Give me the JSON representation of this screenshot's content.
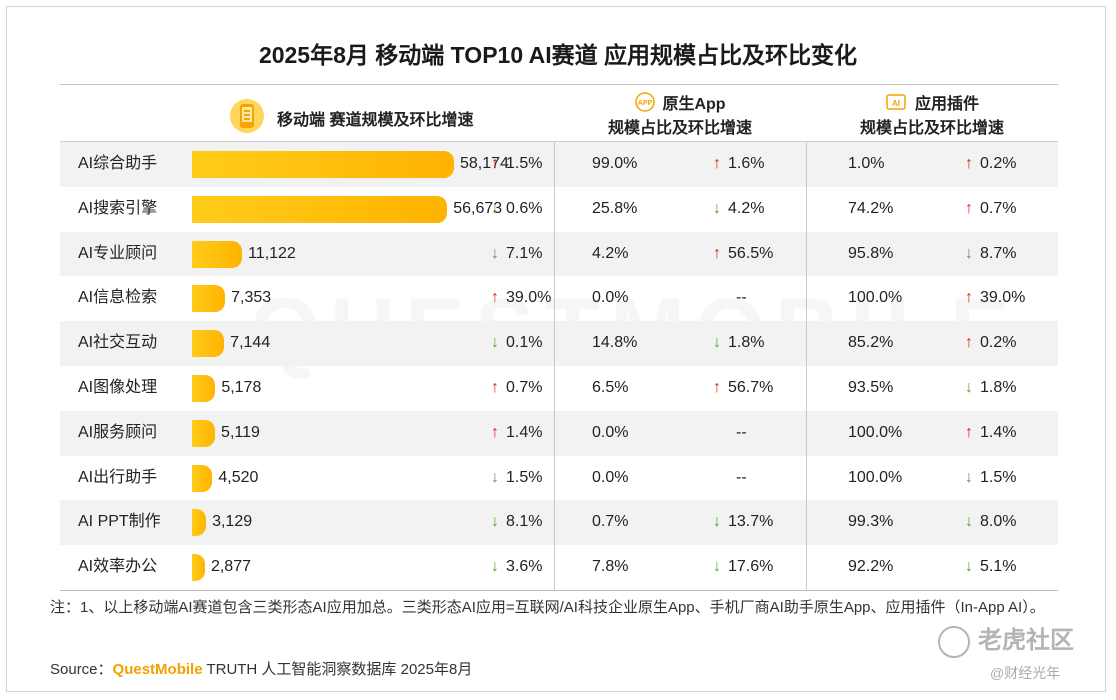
{
  "title": "2025年8月 移动端 TOP10 AI赛道 应用规模占比及环比变化",
  "headers": {
    "col1": "移动端 赛道规模及环比增速",
    "col2_line1": "原生App",
    "col2_line2": "规模占比及环比增速",
    "col3_line1": "应用插件",
    "col3_line2": "规模占比及环比增速",
    "icon2_text": "APP",
    "icon3_text": "AI"
  },
  "colors": {
    "up": "#e0211b",
    "down": "#53a338",
    "bar": "#ffb300"
  },
  "chart_data": {
    "type": "table",
    "title": "2025年8月 移动端 TOP10 AI赛道 应用规模占比及环比变化",
    "bar_max": 58174,
    "columns": [
      "赛道",
      "移动端规模",
      "环比增速",
      "原生App占比",
      "原生App环比",
      "应用插件占比",
      "应用插件环比"
    ],
    "rows": [
      {
        "name": "AI综合助手",
        "value": 58174,
        "value_label": "58,174",
        "mom": "1.5%",
        "mom_dir": "up",
        "app_share": "99.0%",
        "app_mom": "1.6%",
        "app_dir": "up",
        "plugin_share": "1.0%",
        "plugin_mom": "0.2%",
        "plugin_dir": "up"
      },
      {
        "name": "AI搜索引擎",
        "value": 56673,
        "value_label": "56,673",
        "mom": "0.6%",
        "mom_dir": "down",
        "app_share": "25.8%",
        "app_mom": "4.2%",
        "app_dir": "down",
        "plugin_share": "74.2%",
        "plugin_mom": "0.7%",
        "plugin_dir": "up"
      },
      {
        "name": "AI专业顾问",
        "value": 11122,
        "value_label": "11,122",
        "mom": "7.1%",
        "mom_dir": "down",
        "app_share": "4.2%",
        "app_mom": "56.5%",
        "app_dir": "up",
        "plugin_share": "95.8%",
        "plugin_mom": "8.7%",
        "plugin_dir": "down"
      },
      {
        "name": "AI信息检索",
        "value": 7353,
        "value_label": "7,353",
        "mom": "39.0%",
        "mom_dir": "up",
        "app_share": "0.0%",
        "app_mom": "--",
        "app_dir": "none",
        "plugin_share": "100.0%",
        "plugin_mom": "39.0%",
        "plugin_dir": "up"
      },
      {
        "name": "AI社交互动",
        "value": 7144,
        "value_label": "7,144",
        "mom": "0.1%",
        "mom_dir": "down",
        "app_share": "14.8%",
        "app_mom": "1.8%",
        "app_dir": "down",
        "plugin_share": "85.2%",
        "plugin_mom": "0.2%",
        "plugin_dir": "up"
      },
      {
        "name": "AI图像处理",
        "value": 5178,
        "value_label": "5,178",
        "mom": "0.7%",
        "mom_dir": "up",
        "app_share": "6.5%",
        "app_mom": "56.7%",
        "app_dir": "up",
        "plugin_share": "93.5%",
        "plugin_mom": "1.8%",
        "plugin_dir": "down"
      },
      {
        "name": "AI服务顾问",
        "value": 5119,
        "value_label": "5,119",
        "mom": "1.4%",
        "mom_dir": "up",
        "app_share": "0.0%",
        "app_mom": "--",
        "app_dir": "none",
        "plugin_share": "100.0%",
        "plugin_mom": "1.4%",
        "plugin_dir": "up"
      },
      {
        "name": "AI出行助手",
        "value": 4520,
        "value_label": "4,520",
        "mom": "1.5%",
        "mom_dir": "down",
        "app_share": "0.0%",
        "app_mom": "--",
        "app_dir": "none",
        "plugin_share": "100.0%",
        "plugin_mom": "1.5%",
        "plugin_dir": "down"
      },
      {
        "name": "AI PPT制作",
        "value": 3129,
        "value_label": "3,129",
        "mom": "8.1%",
        "mom_dir": "down",
        "app_share": "0.7%",
        "app_mom": "13.7%",
        "app_dir": "down",
        "plugin_share": "99.3%",
        "plugin_mom": "8.0%",
        "plugin_dir": "down"
      },
      {
        "name": "AI效率办公",
        "value": 2877,
        "value_label": "2,877",
        "mom": "3.6%",
        "mom_dir": "down",
        "app_share": "7.8%",
        "app_mom": "17.6%",
        "app_dir": "down",
        "plugin_share": "92.2%",
        "plugin_mom": "5.1%",
        "plugin_dir": "down"
      }
    ]
  },
  "note": "注：1、以上移动端AI赛道包含三类形态AI应用加总。三类形态AI应用=互联网/AI科技企业原生App、手机厂商AI助手原生App、应用插件（In-App AI）。",
  "source_prefix": "Source：",
  "source_brand": "QuestMobile",
  "source_rest": " TRUTH 人工智能洞察数据库 2025年8月",
  "logo_text": "老虎社区",
  "logo2_text": "@财经光年",
  "watermark_text": "QUESTMOBILE"
}
